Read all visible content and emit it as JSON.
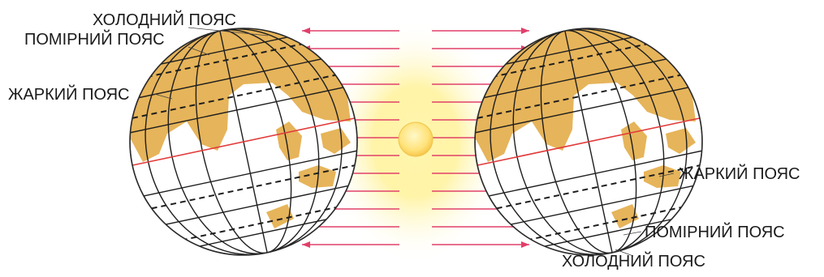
{
  "left_globe": {
    "labels": {
      "cold": "ХОЛОДНИЙ ПОЯС",
      "temperate": "ПОМІРНИЙ ПОЯС",
      "hot": "ЖАРКИЙ ПОЯС"
    }
  },
  "right_globe": {
    "labels": {
      "hot": "ЖАРКИЙ ПОЯС",
      "temperate": "ПОМІРНИЙ ПОЯС",
      "cold": "ХОЛОДНИЙ ПОЯС"
    }
  },
  "colors": {
    "land": "#E6B45A",
    "ocean": "#FFFFFF",
    "grid": "#1E1E1E",
    "equator": "#E23B3B",
    "rays": "#E0406A",
    "sun": "#FFE27A",
    "glow": "#FFF3A8"
  },
  "icons": [
    "globe-left",
    "globe-right",
    "sun-icon",
    "sun-rays"
  ]
}
